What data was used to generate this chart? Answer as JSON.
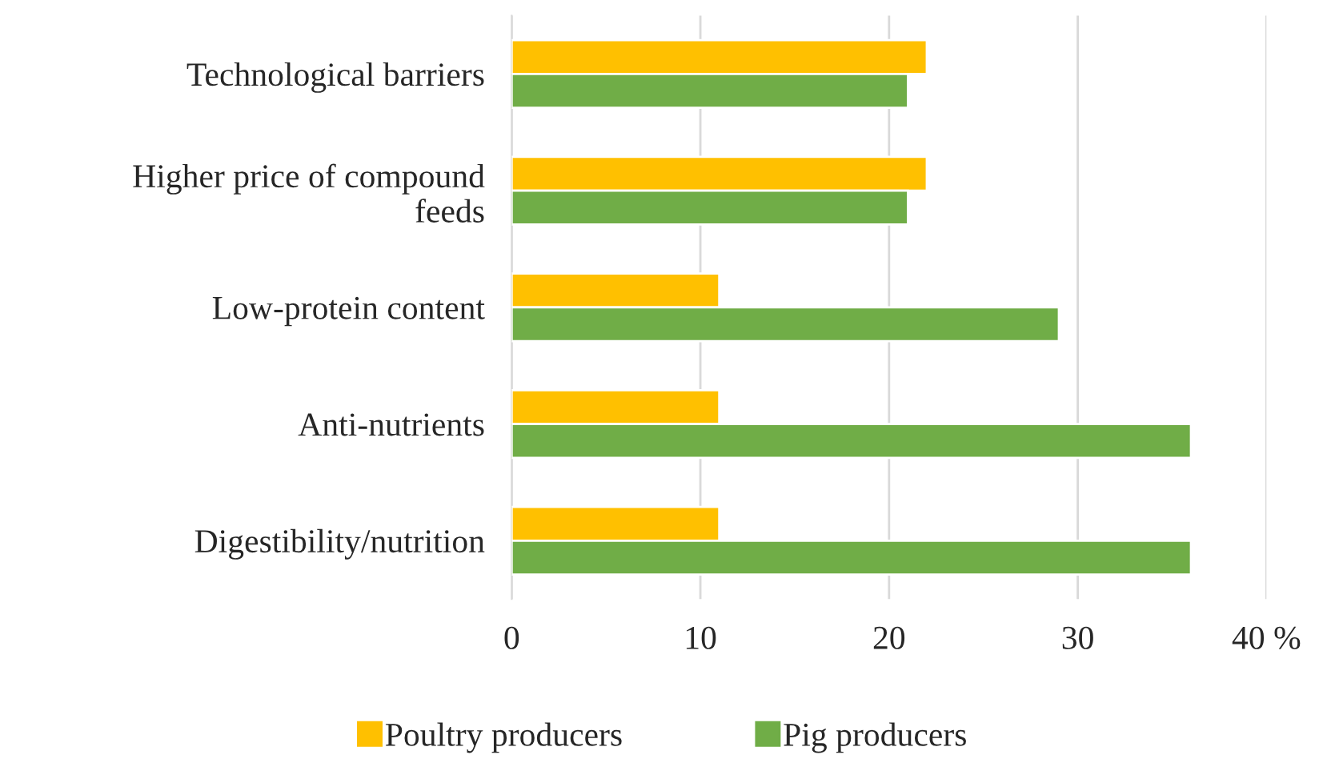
{
  "chart_data": {
    "type": "bar",
    "orientation": "horizontal",
    "categories": [
      "Technological barriers",
      "Higher price of compound\nfeeds",
      "Low-protein content",
      "Anti-nutrients",
      "Digestibility/nutrition"
    ],
    "series": [
      {
        "name": "Poultry producers",
        "color": "#ffc000",
        "values": [
          22,
          22,
          11,
          11,
          11
        ]
      },
      {
        "name": "Pig producers",
        "color": "#70ad47",
        "values": [
          21,
          21,
          29,
          36,
          36
        ]
      }
    ],
    "xlim": [
      0,
      40
    ],
    "xticks": [
      0,
      10,
      20,
      30,
      {
        "value": 40,
        "label": "40 %"
      }
    ],
    "grid": "x",
    "legend": "bottom"
  }
}
